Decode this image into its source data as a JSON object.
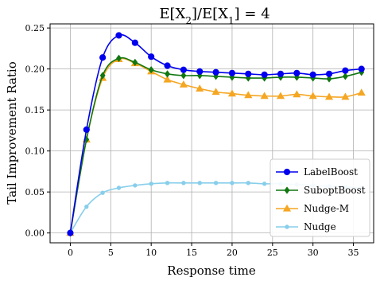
{
  "chart_data": {
    "type": "line",
    "title_parts": {
      "prefix": "E[X",
      "sub1": "2",
      "mid": "]/E[X",
      "sub2": "1",
      "suffix": "] = 4"
    },
    "xlabel": "Response time",
    "ylabel": "Tail Improvement Ratio",
    "xlim": [
      -2.5,
      37.5
    ],
    "ylim": [
      -0.012,
      0.255
    ],
    "xticks": [
      0,
      5,
      10,
      15,
      20,
      25,
      30,
      35
    ],
    "yticks": [
      0.0,
      0.05,
      0.1,
      0.15,
      0.2,
      0.25
    ],
    "ytick_labels": [
      "0.00",
      "0.05",
      "0.10",
      "0.15",
      "0.20",
      "0.25"
    ],
    "grid": true,
    "legend_position": "lower-right",
    "x": [
      0,
      2,
      4,
      6,
      8,
      10,
      12,
      14,
      16,
      18,
      20,
      22,
      24,
      26,
      28,
      30,
      32,
      34,
      36
    ],
    "series": [
      {
        "name": "LabelBoost",
        "color": "#0000ee",
        "marker": "circle",
        "values": [
          0.0,
          0.126,
          0.214,
          0.241,
          0.232,
          0.215,
          0.204,
          0.199,
          0.197,
          0.196,
          0.195,
          0.194,
          0.193,
          0.194,
          0.195,
          0.193,
          0.194,
          0.198,
          0.2
        ]
      },
      {
        "name": "SuboptBoost",
        "color": "#117711",
        "marker": "diamond",
        "values": [
          0.0,
          0.114,
          0.192,
          0.213,
          0.208,
          0.199,
          0.194,
          0.192,
          0.192,
          0.191,
          0.19,
          0.189,
          0.189,
          0.19,
          0.19,
          0.189,
          0.188,
          0.191,
          0.196
        ]
      },
      {
        "name": "Nudge-M",
        "color": "#f5a623",
        "marker": "triangle",
        "values": [
          0.0,
          0.114,
          0.189,
          0.212,
          0.207,
          0.197,
          0.187,
          0.181,
          0.176,
          0.172,
          0.17,
          0.168,
          0.167,
          0.167,
          0.169,
          0.167,
          0.166,
          0.166,
          0.171
        ]
      },
      {
        "name": "Nudge",
        "color": "#87ceeb",
        "marker": "small-circle",
        "values": [
          0.0,
          0.032,
          0.049,
          0.055,
          0.058,
          0.06,
          0.061,
          0.061,
          0.061,
          0.061,
          0.061,
          0.061,
          0.06,
          0.06,
          0.059,
          0.058,
          0.057,
          0.056,
          0.055
        ]
      }
    ]
  }
}
